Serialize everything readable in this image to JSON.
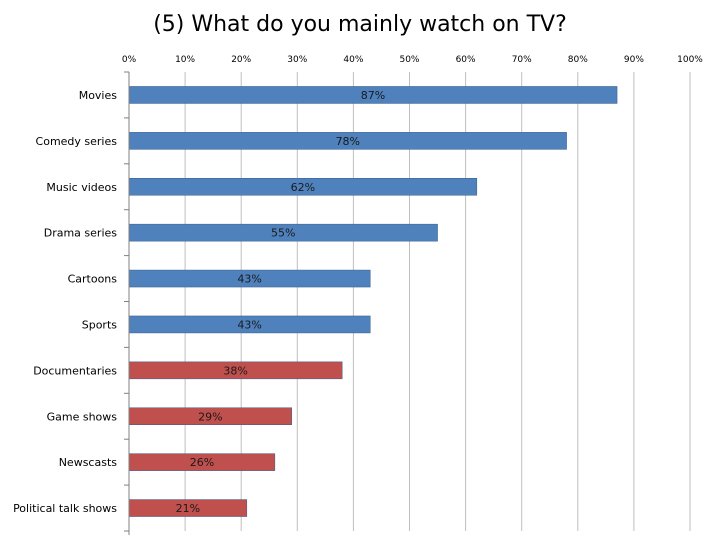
{
  "chart_data": {
    "type": "bar",
    "orientation": "horizontal",
    "title": "(5) What do you mainly watch on TV?",
    "xlabel": "",
    "ylabel": "",
    "xlim": [
      0,
      100
    ],
    "x_ticks": [
      "0%",
      "10%",
      "20%",
      "30%",
      "40%",
      "50%",
      "60%",
      "70%",
      "80%",
      "90%",
      "100%"
    ],
    "tick_position": "top",
    "grid": true,
    "legend": "none",
    "categories": [
      "Movies",
      "Comedy series",
      "Music videos",
      "Drama series",
      "Cartoons",
      "Sports",
      "Documentaries",
      "Game shows",
      "Newscasts",
      "Political talk shows"
    ],
    "values": [
      87,
      78,
      62,
      55,
      43,
      43,
      38,
      29,
      26,
      21
    ],
    "data_labels": [
      "87%",
      "78%",
      "62%",
      "55%",
      "43%",
      "43%",
      "38%",
      "29%",
      "26%",
      "21%"
    ],
    "bar_colors": [
      "#4f81bd",
      "#4f81bd",
      "#4f81bd",
      "#4f81bd",
      "#4f81bd",
      "#4f81bd",
      "#c0504d",
      "#c0504d",
      "#c0504d",
      "#c0504d"
    ]
  }
}
